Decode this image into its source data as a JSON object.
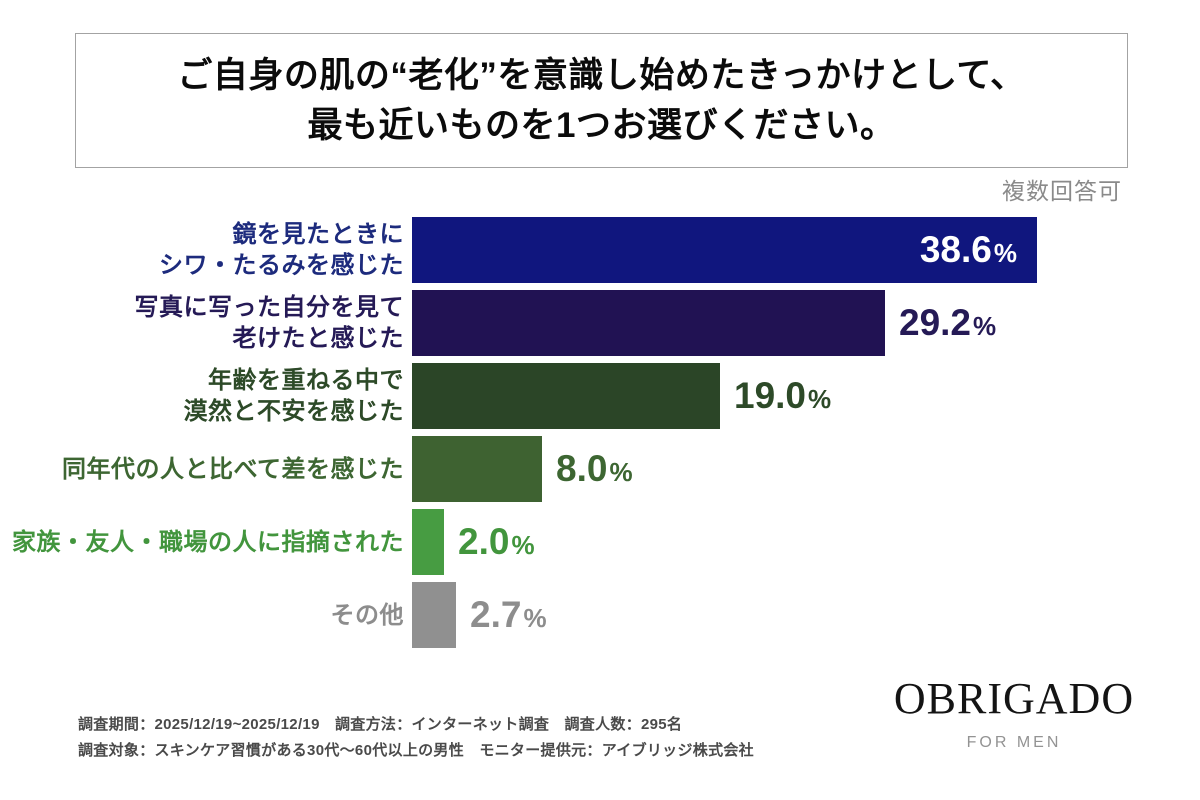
{
  "header": {
    "title_line1": "ご自身の肌の“老化”を意識し始めたきっかけとして、",
    "title_line2": "最も近いものを1つお選びください。"
  },
  "note": {
    "text": "複数回答可"
  },
  "chart_data": {
    "type": "bar",
    "orientation": "horizontal",
    "title": "ご自身の肌の“老化”を意識し始めたきっかけとして、最も近いものを1つお選びください。",
    "note": "複数回答可",
    "unit": "%",
    "xlim": [
      0,
      40
    ],
    "grid": false,
    "legend": null,
    "categories": [
      "鏡を見たときにシワ・たるみを感じた",
      "写真に写った自分を見て老けたと感じた",
      "年齢を重ねる中で漠然と不安を感じた",
      "同年代の人と比べて差を感じた",
      "家族・友人・職場の人に指摘された",
      "その他"
    ],
    "values": [
      38.6,
      29.2,
      19.0,
      8.0,
      2.0,
      2.7
    ],
    "items": [
      {
        "label_lines": [
          "鏡を見たときに",
          "シワ・たるみを感じた"
        ],
        "value": 38.6,
        "value_label": "38.6",
        "unit": "%",
        "bar_color": "#10167e",
        "text_color": "#1d2b7d",
        "value_inside": true,
        "value_color": "#ffffff"
      },
      {
        "label_lines": [
          "写真に写った自分を見て",
          "老けたと感じた"
        ],
        "value": 29.2,
        "value_label": "29.2",
        "unit": "%",
        "bar_color": "#211253",
        "text_color": "#251a56",
        "value_inside": false,
        "value_color": "#251a56"
      },
      {
        "label_lines": [
          "年齢を重ねる中で",
          "漠然と不安を感じた"
        ],
        "value": 19.0,
        "value_label": "19.0",
        "unit": "%",
        "bar_color": "#2b4527",
        "text_color": "#2d4a28",
        "value_inside": false,
        "value_color": "#2d4a28"
      },
      {
        "label_lines": [
          "同年代の人と比べて差を感じた"
        ],
        "value": 8.0,
        "value_label": "8.0",
        "unit": "%",
        "bar_color": "#3e6231",
        "text_color": "#3d6632",
        "value_inside": false,
        "value_color": "#3d6632"
      },
      {
        "label_lines": [
          "家族・友人・職場の人に指摘された"
        ],
        "value": 2.0,
        "value_label": "2.0",
        "unit": "%",
        "bar_color": "#479c42",
        "text_color": "#42953d",
        "value_inside": false,
        "value_color": "#42953d"
      },
      {
        "label_lines": [
          "その他"
        ],
        "value": 2.7,
        "value_label": "2.7",
        "unit": "%",
        "bar_color": "#909090",
        "text_color": "#8d8d8d",
        "value_inside": false,
        "value_color": "#8d8d8d"
      }
    ]
  },
  "footer": {
    "line1": "調査期間：2025/12/19~2025/12/19　調査方法：インターネット調査　調査人数：295名",
    "line2": "調査対象：スキンケア習慣がある30代〜60代以上の男性　モニター提供元：アイブリッジ株式会社"
  },
  "brand": {
    "name": "OBRIGADO",
    "tagline": "FOR MEN"
  }
}
